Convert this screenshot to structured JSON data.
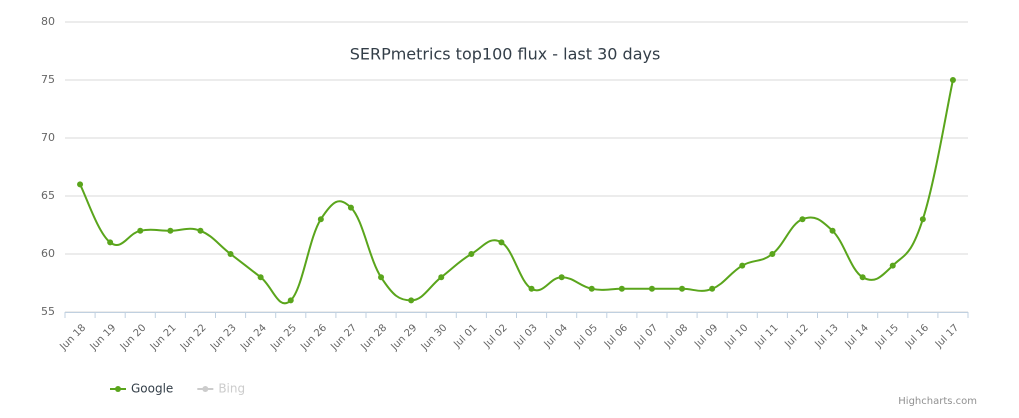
{
  "chart_data": {
    "type": "line",
    "title": "SERPmetrics top100 flux - last 30 days",
    "categories": [
      "Jun 18",
      "Jun 19",
      "Jun 20",
      "Jun 21",
      "Jun 22",
      "Jun 23",
      "Jun 24",
      "Jun 25",
      "Jun 26",
      "Jun 27",
      "Jun 28",
      "Jun 29",
      "Jun 30",
      "Jul 01",
      "Jul 02",
      "Jul 03",
      "Jul 04",
      "Jul 05",
      "Jul 06",
      "Jul 07",
      "Jul 08",
      "Jul 09",
      "Jul 10",
      "Jul 11",
      "Jul 12",
      "Jul 13",
      "Jul 14",
      "Jul 15",
      "Jul 16",
      "Jul 17"
    ],
    "series": [
      {
        "name": "Google",
        "color": "#5aa51c",
        "values": [
          66,
          61,
          62,
          62,
          62,
          60,
          58,
          56,
          63,
          64,
          58,
          56,
          58,
          60,
          61,
          57,
          58,
          57,
          57,
          57,
          57,
          57,
          59,
          60,
          63,
          62,
          58,
          59,
          63,
          75
        ]
      },
      {
        "name": "Bing",
        "color": "#cccccc",
        "visible": false
      }
    ],
    "ylim": [
      55,
      80
    ],
    "yticks": [
      55,
      60,
      65,
      70,
      75,
      80
    ],
    "grid": true,
    "credits": "Highcharts.com"
  }
}
